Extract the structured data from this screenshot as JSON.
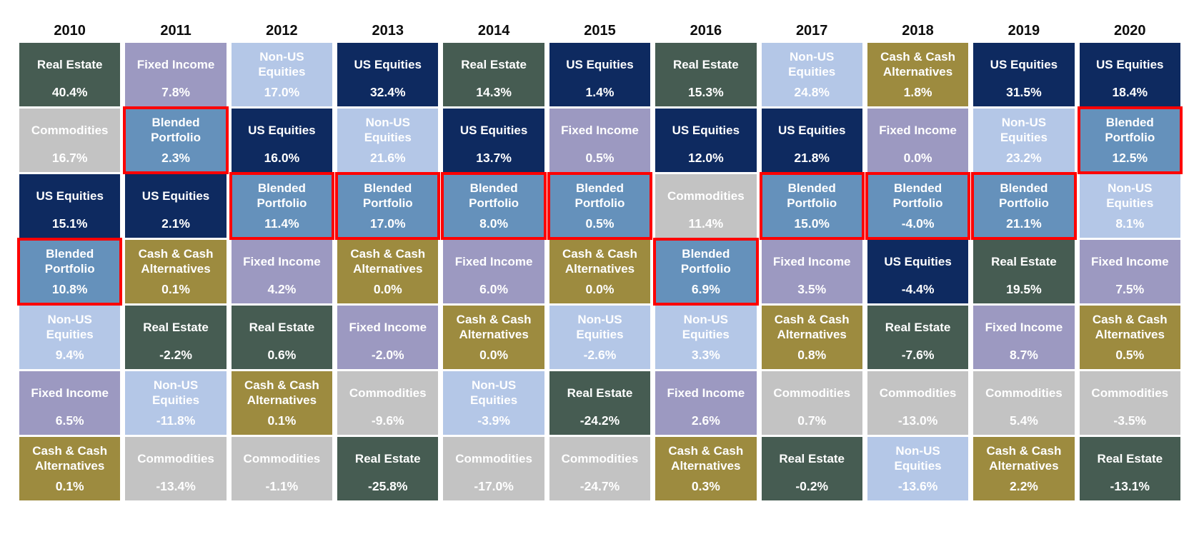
{
  "chart_data": {
    "type": "heatmap",
    "title": "",
    "description": "Asset class annual returns quilt chart: asset classes ranked best (top) to worst (bottom) for each year, 2010-2020. Blended Portfolio cells are highlighted with a red border.",
    "years": [
      "2010",
      "2011",
      "2012",
      "2013",
      "2014",
      "2015",
      "2016",
      "2017",
      "2018",
      "2019",
      "2020"
    ],
    "legend_position": "none",
    "grid": false,
    "highlight_asset": "Blended Portfolio",
    "highlight_border_color": "#fe0000",
    "text_color": "#ffffff",
    "header_text_color": "#0d0d0d",
    "asset_colors": {
      "Real Estate": "#465c52",
      "Fixed Income": "#9c99c1",
      "Non-US Equities": "#b4c7e7",
      "US Equities": "#0e2a60",
      "Commodities": "#c3c3c3",
      "Cash & Cash Alternatives": "#9d8b3f",
      "Blended Portfolio": "#6591bb"
    },
    "columns": [
      {
        "year": "2010",
        "cells": [
          {
            "asset": "Real Estate",
            "value": "40.4%"
          },
          {
            "asset": "Commodities",
            "value": "16.7%"
          },
          {
            "asset": "US Equities",
            "value": "15.1%"
          },
          {
            "asset": "Blended Portfolio",
            "value": "10.8%"
          },
          {
            "asset": "Non-US Equities",
            "value": "9.4%"
          },
          {
            "asset": "Fixed Income",
            "value": "6.5%"
          },
          {
            "asset": "Cash & Cash Alternatives",
            "value": "0.1%"
          }
        ]
      },
      {
        "year": "2011",
        "cells": [
          {
            "asset": "Fixed Income",
            "value": "7.8%"
          },
          {
            "asset": "Blended Portfolio",
            "value": "2.3%"
          },
          {
            "asset": "US Equities",
            "value": "2.1%"
          },
          {
            "asset": "Cash & Cash Alternatives",
            "value": "0.1%"
          },
          {
            "asset": "Real Estate",
            "value": "-2.2%"
          },
          {
            "asset": "Non-US Equities",
            "value": "-11.8%"
          },
          {
            "asset": "Commodities",
            "value": "-13.4%"
          }
        ]
      },
      {
        "year": "2012",
        "cells": [
          {
            "asset": "Non-US Equities",
            "value": "17.0%"
          },
          {
            "asset": "US Equities",
            "value": "16.0%"
          },
          {
            "asset": "Blended Portfolio",
            "value": "11.4%"
          },
          {
            "asset": "Fixed Income",
            "value": "4.2%"
          },
          {
            "asset": "Real Estate",
            "value": "0.6%"
          },
          {
            "asset": "Cash & Cash Alternatives",
            "value": "0.1%"
          },
          {
            "asset": "Commodities",
            "value": "-1.1%"
          }
        ]
      },
      {
        "year": "2013",
        "cells": [
          {
            "asset": "US Equities",
            "value": "32.4%"
          },
          {
            "asset": "Non-US Equities",
            "value": "21.6%"
          },
          {
            "asset": "Blended Portfolio",
            "value": "17.0%"
          },
          {
            "asset": "Cash & Cash Alternatives",
            "value": "0.0%"
          },
          {
            "asset": "Fixed Income",
            "value": "-2.0%"
          },
          {
            "asset": "Commodities",
            "value": "-9.6%"
          },
          {
            "asset": "Real Estate",
            "value": "-25.8%"
          }
        ]
      },
      {
        "year": "2014",
        "cells": [
          {
            "asset": "Real Estate",
            "value": "14.3%"
          },
          {
            "asset": "US Equities",
            "value": "13.7%"
          },
          {
            "asset": "Blended Portfolio",
            "value": "8.0%"
          },
          {
            "asset": "Fixed Income",
            "value": "6.0%"
          },
          {
            "asset": "Cash & Cash Alternatives",
            "value": "0.0%"
          },
          {
            "asset": "Non-US Equities",
            "value": "-3.9%"
          },
          {
            "asset": "Commodities",
            "value": "-17.0%"
          }
        ]
      },
      {
        "year": "2015",
        "cells": [
          {
            "asset": "US Equities",
            "value": "1.4%"
          },
          {
            "asset": "Fixed Income",
            "value": "0.5%"
          },
          {
            "asset": "Blended Portfolio",
            "value": "0.5%"
          },
          {
            "asset": "Cash & Cash Alternatives",
            "value": "0.0%"
          },
          {
            "asset": "Non-US Equities",
            "value": "-2.6%"
          },
          {
            "asset": "Real Estate",
            "value": "-24.2%"
          },
          {
            "asset": "Commodities",
            "value": "-24.7%"
          }
        ]
      },
      {
        "year": "2016",
        "cells": [
          {
            "asset": "Real Estate",
            "value": "15.3%"
          },
          {
            "asset": "US Equities",
            "value": "12.0%"
          },
          {
            "asset": "Commodities",
            "value": "11.4%"
          },
          {
            "asset": "Blended Portfolio",
            "value": "6.9%"
          },
          {
            "asset": "Non-US Equities",
            "value": "3.3%"
          },
          {
            "asset": "Fixed Income",
            "value": "2.6%"
          },
          {
            "asset": "Cash & Cash Alternatives",
            "value": "0.3%"
          }
        ]
      },
      {
        "year": "2017",
        "cells": [
          {
            "asset": "Non-US Equities",
            "value": "24.8%"
          },
          {
            "asset": "US Equities",
            "value": "21.8%"
          },
          {
            "asset": "Blended Portfolio",
            "value": "15.0%"
          },
          {
            "asset": "Fixed Income",
            "value": "3.5%"
          },
          {
            "asset": "Cash & Cash Alternatives",
            "value": "0.8%"
          },
          {
            "asset": "Commodities",
            "value": "0.7%"
          },
          {
            "asset": "Real Estate",
            "value": "-0.2%"
          }
        ]
      },
      {
        "year": "2018",
        "cells": [
          {
            "asset": "Cash & Cash Alternatives",
            "value": "1.8%"
          },
          {
            "asset": "Fixed Income",
            "value": "0.0%"
          },
          {
            "asset": "Blended Portfolio",
            "value": "-4.0%"
          },
          {
            "asset": "US Equities",
            "value": "-4.4%"
          },
          {
            "asset": "Real Estate",
            "value": "-7.6%"
          },
          {
            "asset": "Commodities",
            "value": "-13.0%"
          },
          {
            "asset": "Non-US Equities",
            "value": "-13.6%"
          }
        ]
      },
      {
        "year": "2019",
        "cells": [
          {
            "asset": "US Equities",
            "value": "31.5%"
          },
          {
            "asset": "Non-US Equities",
            "value": "23.2%"
          },
          {
            "asset": "Blended Portfolio",
            "value": "21.1%"
          },
          {
            "asset": "Real Estate",
            "value": "19.5%"
          },
          {
            "asset": "Fixed Income",
            "value": "8.7%"
          },
          {
            "asset": "Commodities",
            "value": "5.4%"
          },
          {
            "asset": "Cash & Cash Alternatives",
            "value": "2.2%"
          }
        ]
      },
      {
        "year": "2020",
        "cells": [
          {
            "asset": "US Equities",
            "value": "18.4%"
          },
          {
            "asset": "Blended Portfolio",
            "value": "12.5%"
          },
          {
            "asset": "Non-US Equities",
            "value": "8.1%"
          },
          {
            "asset": "Fixed Income",
            "value": "7.5%"
          },
          {
            "asset": "Cash & Cash Alternatives",
            "value": "0.5%"
          },
          {
            "asset": "Commodities",
            "value": "-3.5%"
          },
          {
            "asset": "Real Estate",
            "value": "-13.1%"
          }
        ]
      }
    ]
  }
}
